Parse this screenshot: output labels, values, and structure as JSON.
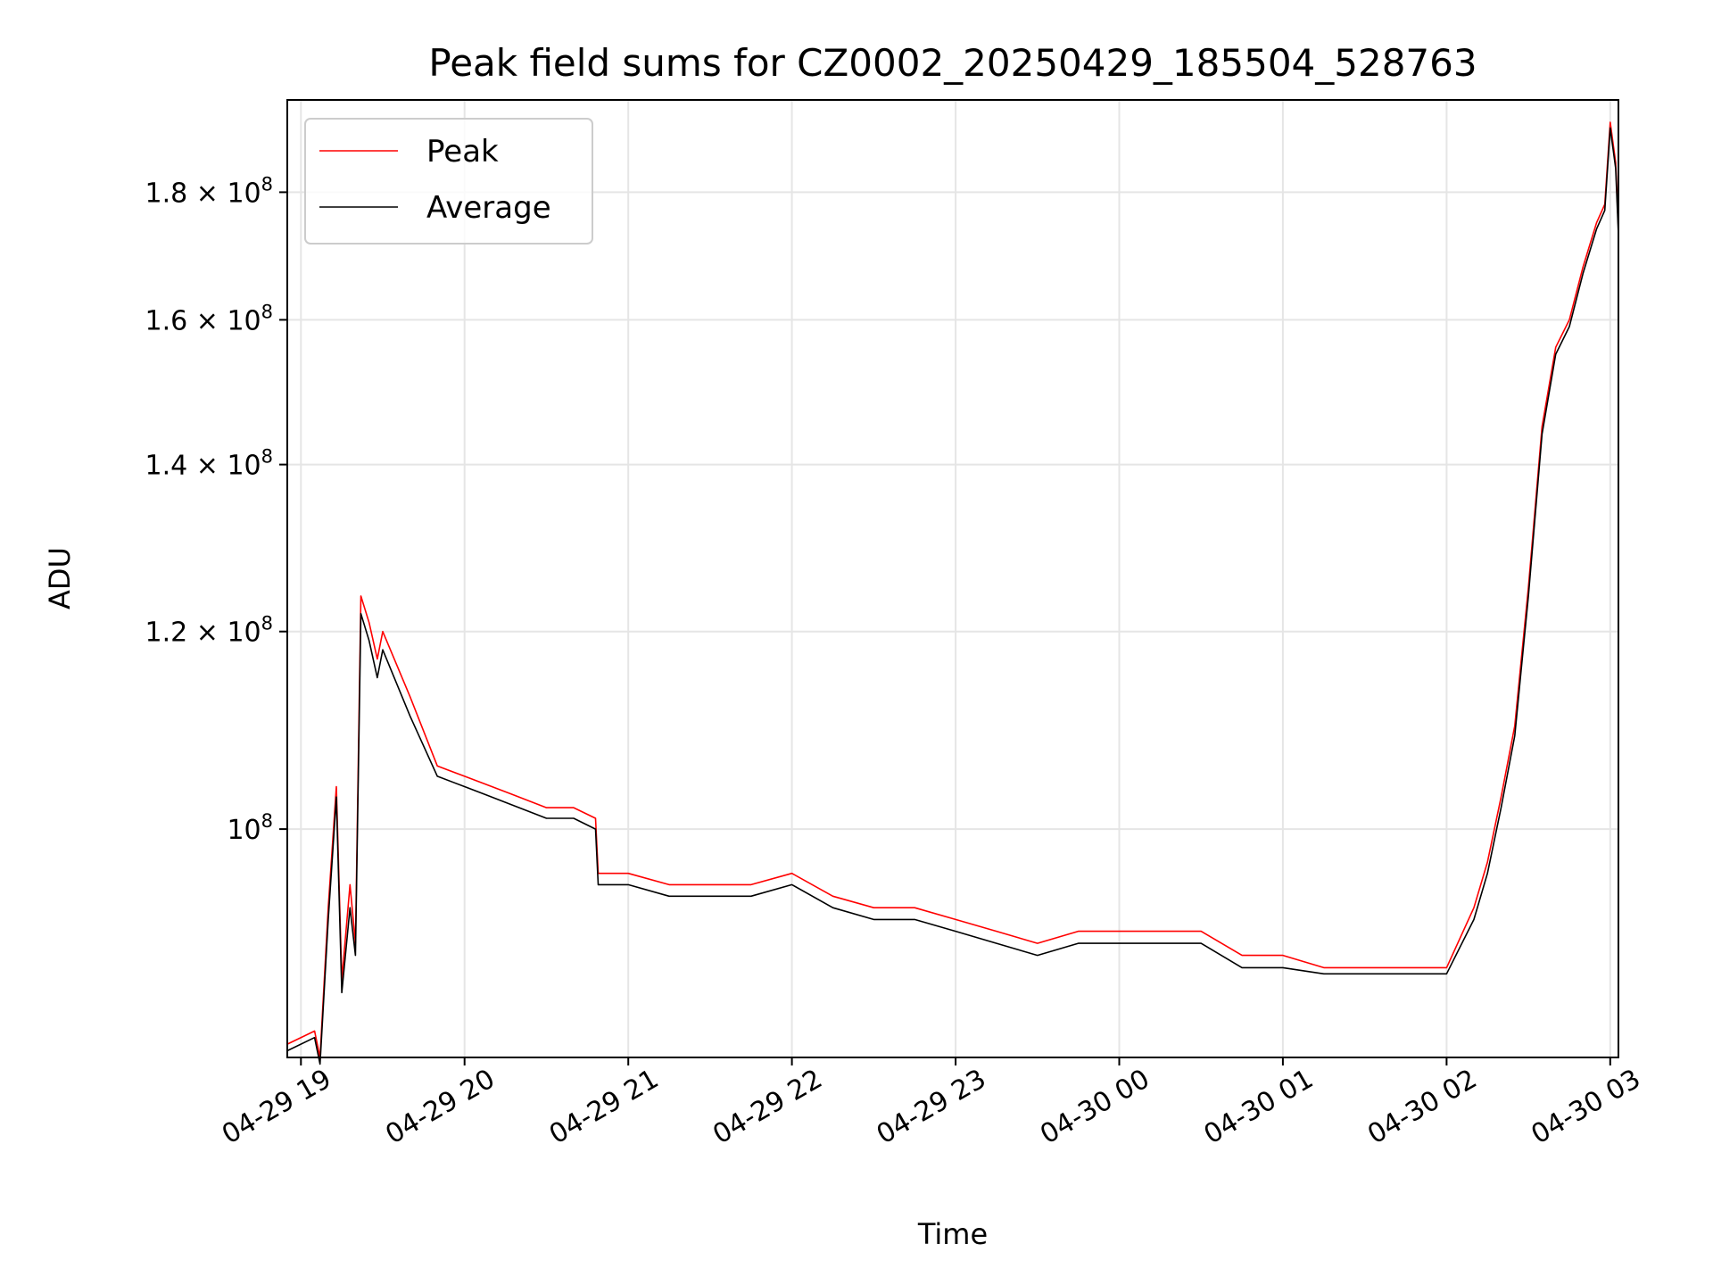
{
  "chart_data": {
    "type": "line",
    "title": "Peak field sums for CZ0002_20250429_185504_528763",
    "xlabel": "Time",
    "ylabel": "ADU",
    "y_scale": "log",
    "ylim": [
      81000000,
      196000000
    ],
    "xlim": [
      "2025-04-29 18:55",
      "2025-04-30 03:03"
    ],
    "grid": true,
    "legend_placement": "upper-left",
    "x_ticks": [
      {
        "t": "2025-04-29 19:00",
        "label": "04-29 19"
      },
      {
        "t": "2025-04-29 20:00",
        "label": "04-29 20"
      },
      {
        "t": "2025-04-29 21:00",
        "label": "04-29 21"
      },
      {
        "t": "2025-04-29 22:00",
        "label": "04-29 22"
      },
      {
        "t": "2025-04-29 23:00",
        "label": "04-29 23"
      },
      {
        "t": "2025-04-30 00:00",
        "label": "04-30 00"
      },
      {
        "t": "2025-04-30 01:00",
        "label": "04-30 01"
      },
      {
        "t": "2025-04-30 02:00",
        "label": "04-30 02"
      },
      {
        "t": "2025-04-30 03:00",
        "label": "04-30 03"
      }
    ],
    "y_ticks": [
      {
        "value": 100000000,
        "mantissa": "",
        "exponent": "8"
      },
      {
        "value": 120000000,
        "mantissa": "1.2",
        "exponent": "8"
      },
      {
        "value": 140000000,
        "mantissa": "1.4",
        "exponent": "8"
      },
      {
        "value": 160000000,
        "mantissa": "1.6",
        "exponent": "8"
      },
      {
        "value": 180000000,
        "mantissa": "1.8",
        "exponent": "8"
      }
    ],
    "series": [
      {
        "name": "Peak",
        "color": "#ff0000",
        "x": [
          "2025-04-29 18:55",
          "2025-04-29 19:05",
          "2025-04-29 19:07",
          "2025-04-29 19:10",
          "2025-04-29 19:13",
          "2025-04-29 19:15",
          "2025-04-29 19:18",
          "2025-04-29 19:20",
          "2025-04-29 19:22",
          "2025-04-29 19:25",
          "2025-04-29 19:28",
          "2025-04-29 19:30",
          "2025-04-29 19:40",
          "2025-04-29 19:50",
          "2025-04-29 20:00",
          "2025-04-29 20:10",
          "2025-04-29 20:20",
          "2025-04-29 20:30",
          "2025-04-29 20:40",
          "2025-04-29 20:48",
          "2025-04-29 20:49",
          "2025-04-29 21:00",
          "2025-04-29 21:15",
          "2025-04-29 21:30",
          "2025-04-29 21:45",
          "2025-04-29 22:00",
          "2025-04-29 22:15",
          "2025-04-29 22:30",
          "2025-04-29 22:45",
          "2025-04-29 23:00",
          "2025-04-29 23:15",
          "2025-04-29 23:30",
          "2025-04-29 23:45",
          "2025-04-30 00:00",
          "2025-04-30 00:15",
          "2025-04-30 00:30",
          "2025-04-30 00:45",
          "2025-04-30 01:00",
          "2025-04-30 01:15",
          "2025-04-30 01:30",
          "2025-04-30 01:45",
          "2025-04-30 02:00",
          "2025-04-30 02:10",
          "2025-04-30 02:15",
          "2025-04-30 02:20",
          "2025-04-30 02:25",
          "2025-04-30 02:30",
          "2025-04-30 02:35",
          "2025-04-30 02:40",
          "2025-04-30 02:45",
          "2025-04-30 02:50",
          "2025-04-30 02:55",
          "2025-04-30 02:58",
          "2025-04-30 03:00",
          "2025-04-30 03:02",
          "2025-04-30 03:03"
        ],
        "values": [
          82000000,
          83000000,
          81000000,
          93000000,
          104000000,
          87000000,
          95000000,
          90000000,
          124000000,
          121000000,
          117000000,
          120000000,
          113000000,
          106000000,
          105000000,
          104000000,
          103000000,
          102000000,
          102000000,
          101000000,
          96000000,
          96000000,
          95000000,
          95000000,
          95000000,
          96000000,
          94000000,
          93000000,
          93000000,
          92000000,
          91000000,
          90000000,
          91000000,
          91000000,
          91000000,
          91000000,
          89000000,
          89000000,
          88000000,
          88000000,
          88000000,
          88000000,
          93000000,
          97000000,
          103000000,
          110000000,
          125000000,
          145000000,
          156000000,
          160000000,
          168000000,
          175000000,
          178000000,
          192000000,
          185000000,
          174000000
        ]
      },
      {
        "name": "Average",
        "color": "#000000",
        "x": [
          "2025-04-29 18:55",
          "2025-04-29 19:05",
          "2025-04-29 19:07",
          "2025-04-29 19:10",
          "2025-04-29 19:13",
          "2025-04-29 19:15",
          "2025-04-29 19:18",
          "2025-04-29 19:20",
          "2025-04-29 19:22",
          "2025-04-29 19:25",
          "2025-04-29 19:28",
          "2025-04-29 19:30",
          "2025-04-29 19:40",
          "2025-04-29 19:50",
          "2025-04-29 20:00",
          "2025-04-29 20:10",
          "2025-04-29 20:20",
          "2025-04-29 20:30",
          "2025-04-29 20:40",
          "2025-04-29 20:48",
          "2025-04-29 20:49",
          "2025-04-29 21:00",
          "2025-04-29 21:15",
          "2025-04-29 21:30",
          "2025-04-29 21:45",
          "2025-04-29 22:00",
          "2025-04-29 22:15",
          "2025-04-29 22:30",
          "2025-04-29 22:45",
          "2025-04-29 23:00",
          "2025-04-29 23:15",
          "2025-04-29 23:30",
          "2025-04-29 23:45",
          "2025-04-30 00:00",
          "2025-04-30 00:15",
          "2025-04-30 00:30",
          "2025-04-30 00:45",
          "2025-04-30 01:00",
          "2025-04-30 01:15",
          "2025-04-30 01:30",
          "2025-04-30 01:45",
          "2025-04-30 02:00",
          "2025-04-30 02:10",
          "2025-04-30 02:15",
          "2025-04-30 02:20",
          "2025-04-30 02:25",
          "2025-04-30 02:30",
          "2025-04-30 02:35",
          "2025-04-30 02:40",
          "2025-04-30 02:45",
          "2025-04-30 02:50",
          "2025-04-30 02:55",
          "2025-04-30 02:58",
          "2025-04-30 03:00",
          "2025-04-30 03:02",
          "2025-04-30 03:03"
        ],
        "values": [
          81500000,
          82500000,
          80500000,
          92000000,
          103000000,
          86000000,
          93000000,
          89000000,
          122000000,
          119000000,
          115000000,
          118000000,
          111000000,
          105000000,
          104000000,
          103000000,
          102000000,
          101000000,
          101000000,
          100000000,
          95000000,
          95000000,
          94000000,
          94000000,
          94000000,
          95000000,
          93000000,
          92000000,
          92000000,
          91000000,
          90000000,
          89000000,
          90000000,
          90000000,
          90000000,
          90000000,
          88000000,
          88000000,
          87500000,
          87500000,
          87500000,
          87500000,
          92000000,
          96000000,
          102000000,
          109000000,
          124000000,
          144000000,
          155000000,
          159000000,
          167000000,
          174000000,
          177000000,
          191000000,
          184000000,
          173000000
        ]
      }
    ]
  }
}
